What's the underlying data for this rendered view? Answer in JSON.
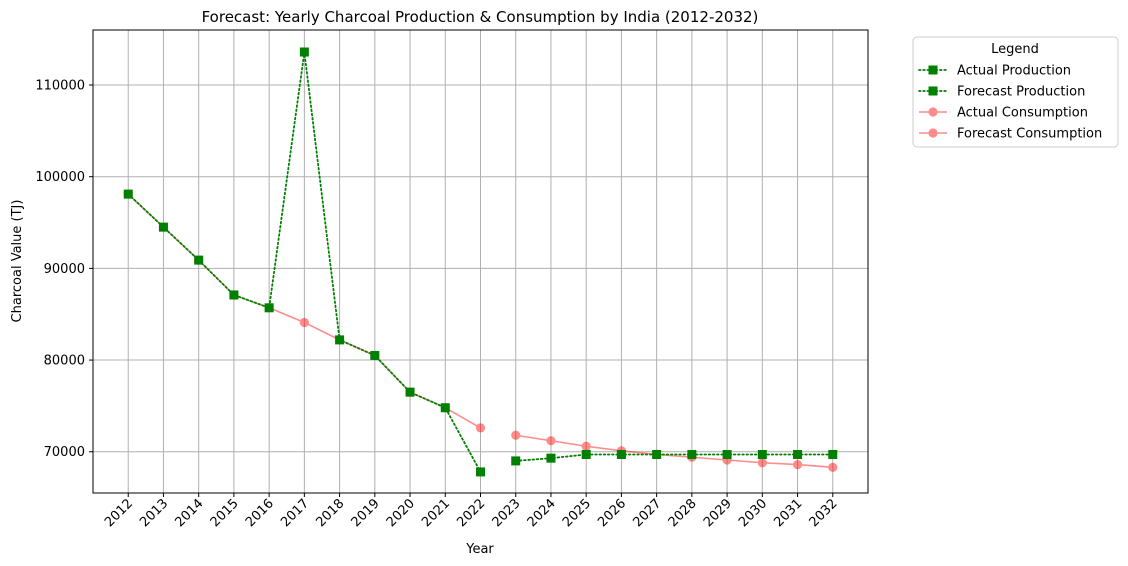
{
  "chart_data": {
    "type": "line",
    "title": "Forecast: Yearly Charcoal Production & Consumption by India (2012-2032)",
    "xlabel": "Year",
    "ylabel": "Charcoal Value (TJ)",
    "x": [
      2012,
      2013,
      2014,
      2015,
      2016,
      2017,
      2018,
      2019,
      2020,
      2021,
      2022,
      2023,
      2024,
      2025,
      2026,
      2027,
      2028,
      2029,
      2030,
      2031,
      2032
    ],
    "x_tick_labels": [
      "2012",
      "2013",
      "2014",
      "2015",
      "2016",
      "2017",
      "2018",
      "2019",
      "2020",
      "2021",
      "2022",
      "2023",
      "2024",
      "2025",
      "2026",
      "2027",
      "2028",
      "2029",
      "2030",
      "2031",
      "2032"
    ],
    "y_ticks": [
      70000,
      80000,
      90000,
      100000,
      110000
    ],
    "y_tick_labels": [
      "70000",
      "80000",
      "90000",
      "100000",
      "110000"
    ],
    "ylim": [
      65500,
      116000
    ],
    "grid": true,
    "legend_title": "Legend",
    "legend_position": "outside-top-right",
    "series": [
      {
        "name": "Actual Production",
        "color": "#008000",
        "linestyle": "dotted",
        "marker": "square",
        "alpha": 1.0,
        "x": [
          2012,
          2013,
          2014,
          2015,
          2016,
          2017,
          2018,
          2019,
          2020,
          2021,
          2022
        ],
        "values": [
          98100,
          94500,
          90900,
          87100,
          85700,
          113600,
          82200,
          80500,
          76500,
          74800,
          67800
        ]
      },
      {
        "name": "Forecast Production",
        "color": "#008000",
        "linestyle": "dotted",
        "marker": "square",
        "alpha": 1.0,
        "x": [
          2023,
          2024,
          2025,
          2026,
          2027,
          2028,
          2029,
          2030,
          2031,
          2032
        ],
        "values": [
          69000,
          69300,
          69700,
          69700,
          69700,
          69700,
          69700,
          69700,
          69700,
          69700
        ]
      },
      {
        "name": "Actual Consumption",
        "color": "#ff0000",
        "linestyle": "solid",
        "marker": "circle",
        "alpha": 0.45,
        "x": [
          2012,
          2013,
          2014,
          2015,
          2016,
          2017,
          2018,
          2019,
          2020,
          2021,
          2022
        ],
        "values": [
          98100,
          94500,
          90900,
          87100,
          85700,
          84100,
          82200,
          80500,
          76500,
          74800,
          72600
        ]
      },
      {
        "name": "Forecast Consumption",
        "color": "#ff0000",
        "linestyle": "solid",
        "marker": "circle",
        "alpha": 0.45,
        "x": [
          2023,
          2024,
          2025,
          2026,
          2027,
          2028,
          2029,
          2030,
          2031,
          2032
        ],
        "values": [
          71800,
          71200,
          70600,
          70100,
          69700,
          69400,
          69100,
          68800,
          68600,
          68300
        ]
      }
    ]
  }
}
